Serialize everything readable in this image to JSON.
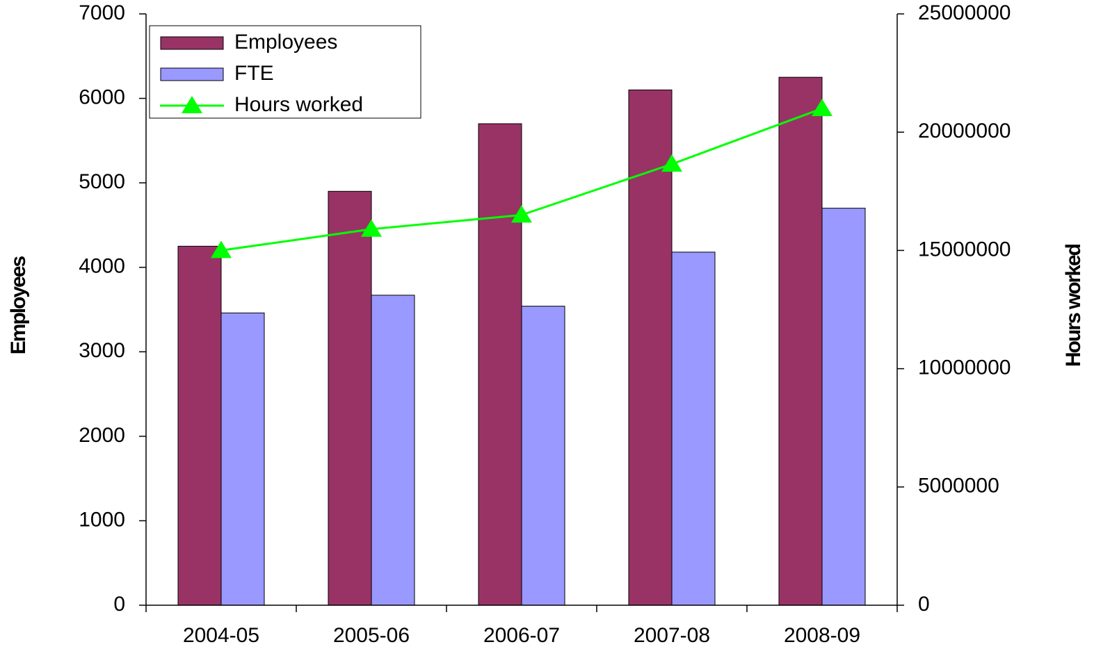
{
  "chart_data": {
    "type": "bar",
    "categories": [
      "2004-05",
      "2005-06",
      "2006-07",
      "2007-08",
      "2008-09"
    ],
    "series": [
      {
        "name": "Employees",
        "color": "#993366",
        "values": [
          4250,
          4900,
          5700,
          6100,
          6250
        ]
      },
      {
        "name": "FTE",
        "color": "#9999ff",
        "values": [
          3460,
          3670,
          3540,
          4180,
          4700
        ]
      },
      {
        "name": "Hours worked",
        "color": "#00ff00",
        "type": "line",
        "axis": "y2",
        "values": [
          15000000,
          15900000,
          16500000,
          18650000,
          21000000
        ]
      }
    ],
    "ylabel": "Employees",
    "y2label": "Hours worked",
    "ylim": [
      0,
      7000
    ],
    "yticks": [
      0,
      1000,
      2000,
      3000,
      4000,
      5000,
      6000,
      7000
    ],
    "y2lim": [
      0,
      25000000
    ],
    "y2ticks": [
      0,
      5000000,
      10000000,
      15000000,
      20000000,
      25000000
    ],
    "grid": false,
    "legend": "upper left"
  }
}
